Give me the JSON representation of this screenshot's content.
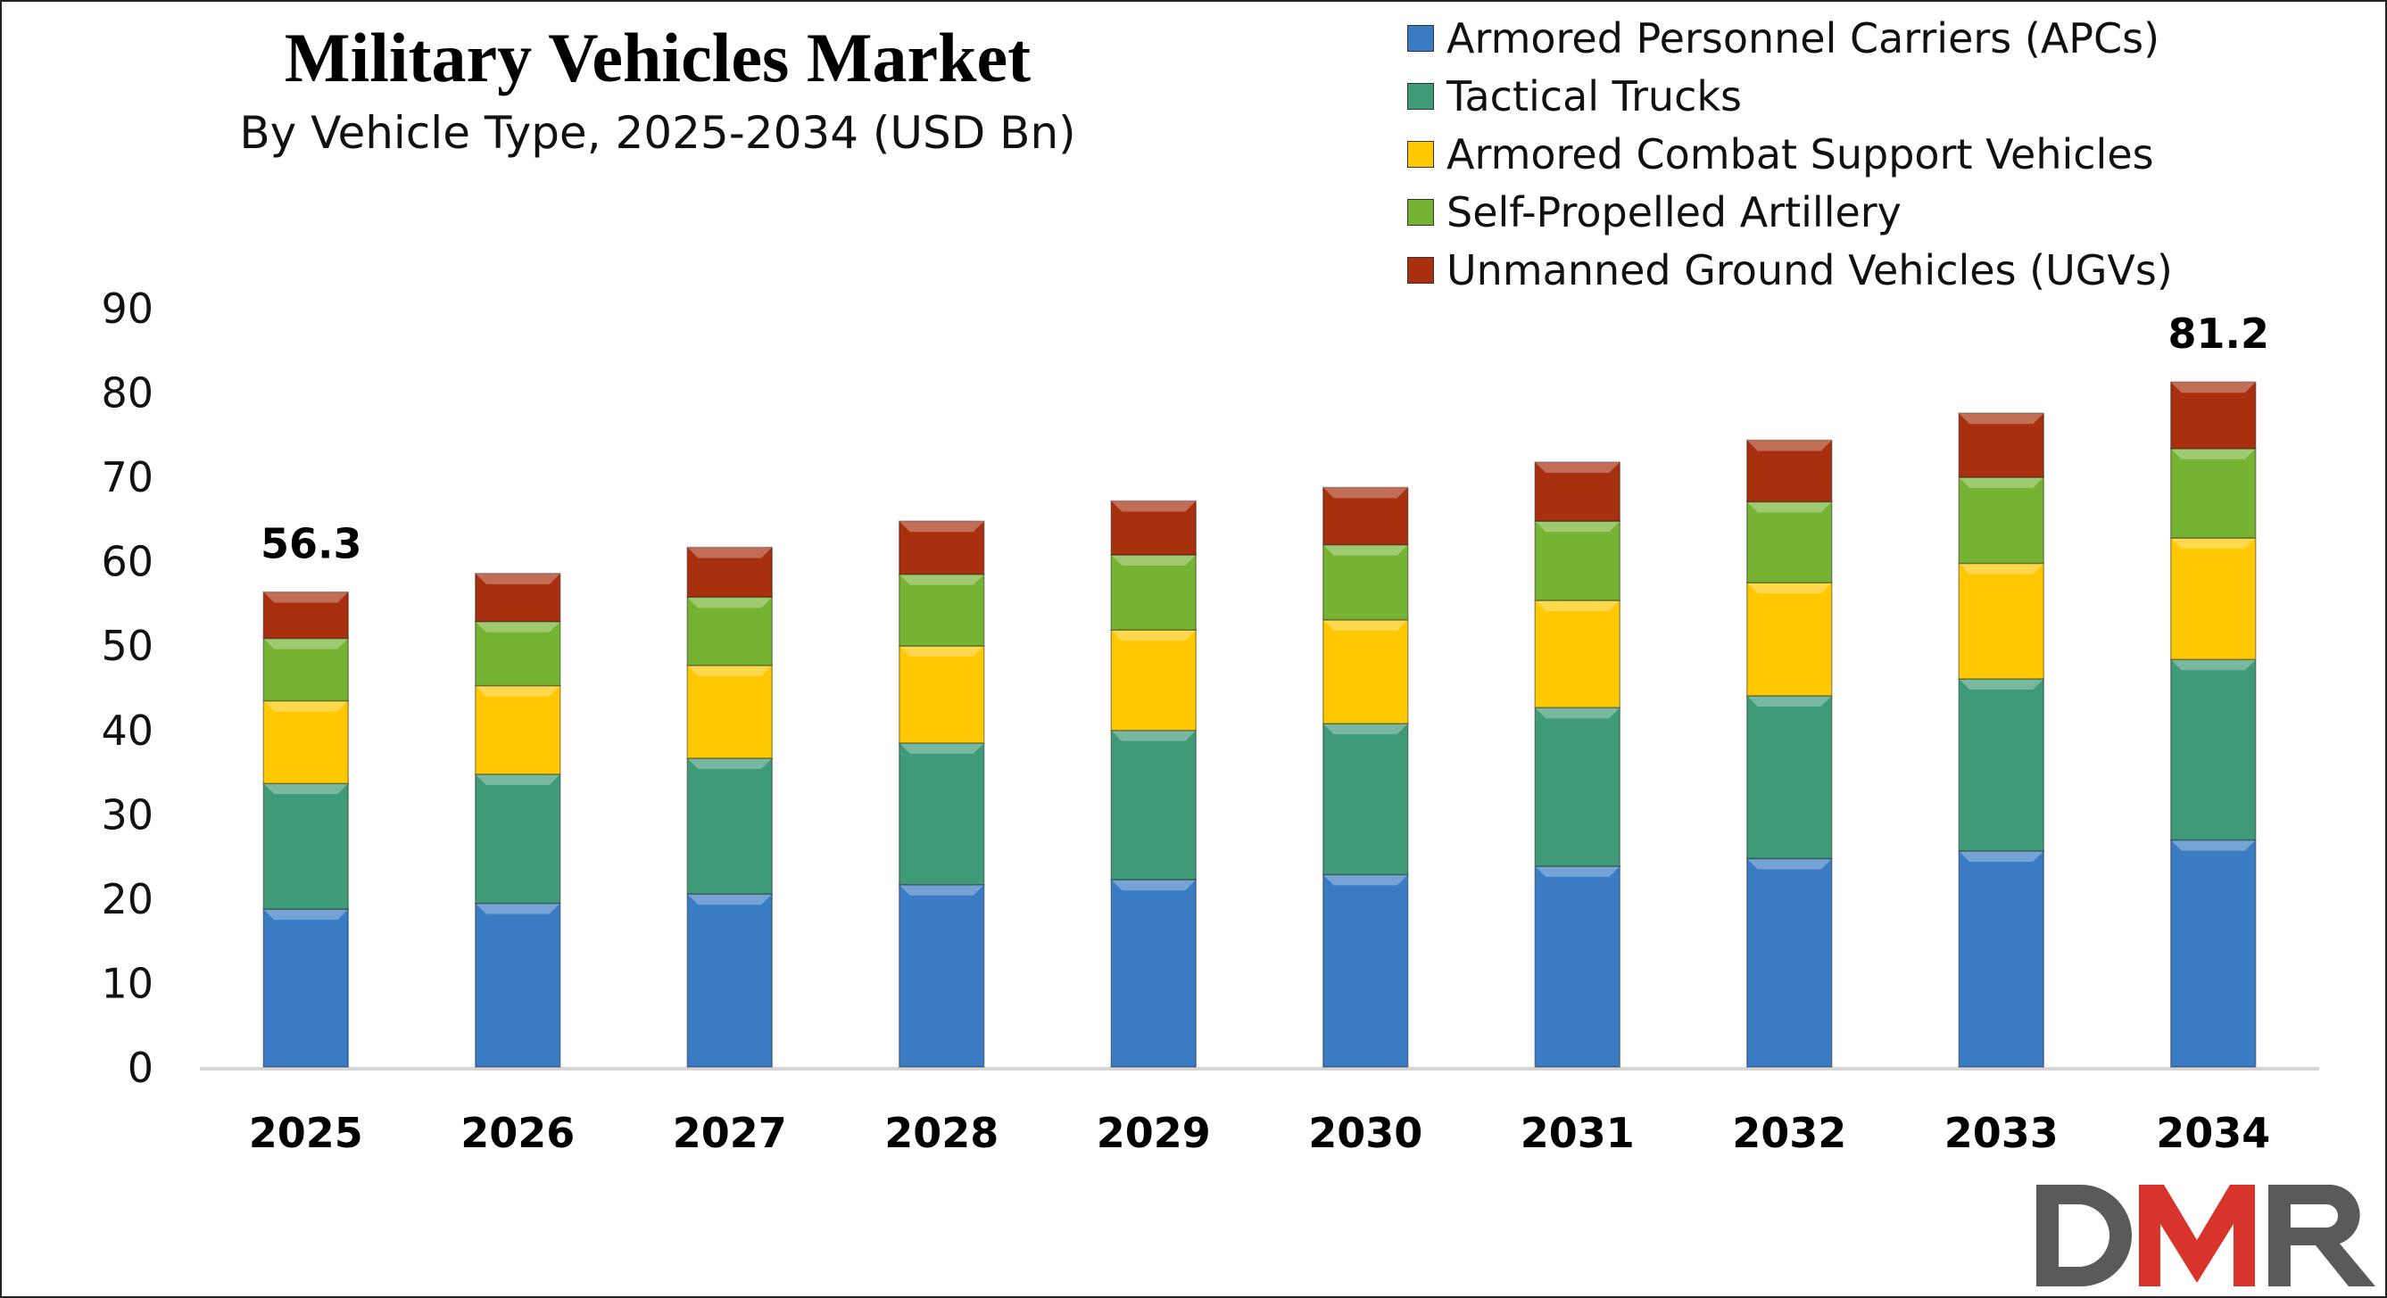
{
  "chart_data": {
    "type": "bar",
    "stacked": true,
    "title": "Military Vehicles Market",
    "subtitle": "By Vehicle Type, 2025-2034 (USD Bn)",
    "xlabel": "",
    "ylabel": "",
    "ylim": [
      0,
      90
    ],
    "yticks": [
      0,
      10,
      20,
      30,
      40,
      50,
      60,
      70,
      80,
      90
    ],
    "grid": false,
    "legend_position": "top-right",
    "categories": [
      "2025",
      "2026",
      "2027",
      "2028",
      "2029",
      "2030",
      "2031",
      "2032",
      "2033",
      "2034"
    ],
    "series": [
      {
        "name": "Armored Personnel Carriers (APCs)",
        "color": "#3a7cc4",
        "values": [
          18.7,
          19.4,
          20.5,
          21.6,
          22.2,
          22.8,
          23.8,
          24.7,
          25.6,
          26.9
        ]
      },
      {
        "name": "Tactical Trucks",
        "color": "#3f9a78",
        "values": [
          14.9,
          15.3,
          16.1,
          16.8,
          17.7,
          17.9,
          18.8,
          19.3,
          20.4,
          21.4
        ]
      },
      {
        "name": "Armored Combat Support Vehicles",
        "color": "#ffc800",
        "values": [
          9.8,
          10.5,
          11.0,
          11.5,
          11.9,
          12.3,
          12.7,
          13.4,
          13.7,
          14.4
        ]
      },
      {
        "name": "Self-Propelled Artillery",
        "color": "#76b332",
        "values": [
          7.4,
          7.6,
          8.1,
          8.5,
          8.9,
          8.9,
          9.4,
          9.6,
          10.2,
          10.6
        ]
      },
      {
        "name": "Unmanned Ground Vehicles (UGVs)",
        "color": "#a8300e",
        "values": [
          5.5,
          5.7,
          5.9,
          6.3,
          6.4,
          6.8,
          7.0,
          7.3,
          7.6,
          7.9
        ]
      }
    ],
    "annotations": [
      {
        "category": "2025",
        "text": "56.3"
      },
      {
        "category": "2034",
        "text": "81.2"
      }
    ]
  },
  "logo": {
    "text": "DMR",
    "colors": [
      "#5a5a5a",
      "#d9342b"
    ]
  }
}
